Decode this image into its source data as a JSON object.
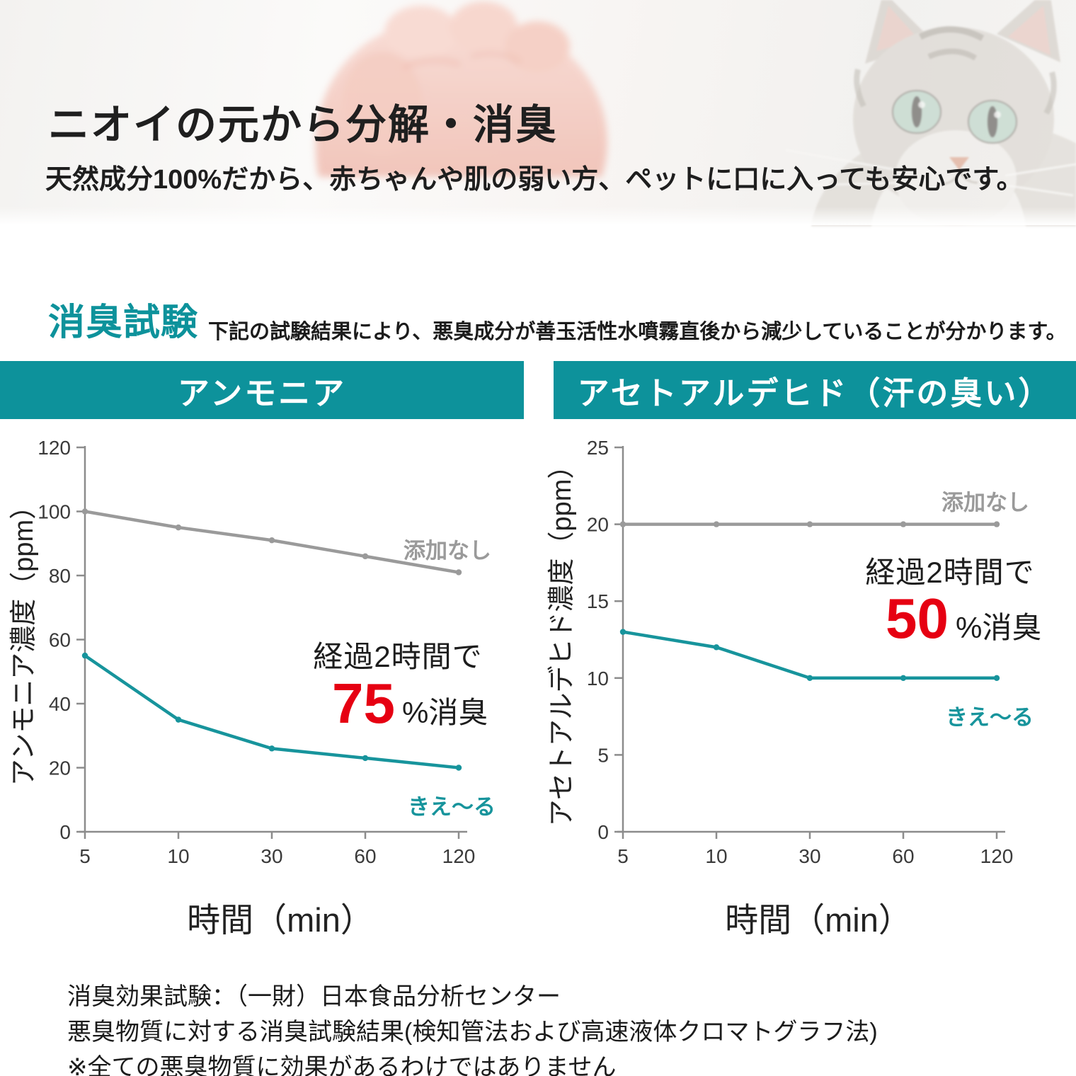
{
  "header": {
    "title": "ニオイの元から分解・消臭",
    "subtitle": "天然成分100%だから、赤ちゃんや肌の弱い方、ペットに口に入っても安心です。"
  },
  "section": {
    "heading": "消臭試験",
    "note": "下記の試験結果により、悪臭成分が善玉活性水噴霧直後から減少していることが分かります。"
  },
  "colors": {
    "teal": "#0d929b",
    "teal_line": "#17949c",
    "gray_line": "#9a9a9a",
    "red": "#e60012",
    "axis": "#8c8c8c",
    "tick_text": "#3a3a3a",
    "annotation_text": "#1d1d1d"
  },
  "chart_data": [
    {
      "type": "line",
      "title": "アンモニア",
      "categories": [
        5,
        10,
        30,
        60,
        120
      ],
      "series": [
        {
          "name": "添加なし",
          "values": [
            100,
            95,
            91,
            86,
            81
          ],
          "color": "#9a9a9a"
        },
        {
          "name": "きえ〜る",
          "values": [
            55,
            35,
            26,
            23,
            20
          ],
          "color": "#17949c"
        }
      ],
      "xlabel": "時間（min）",
      "ylabel": "アンモニア濃度（ppm）",
      "ylim": [
        0,
        120
      ],
      "ytick_step": 20,
      "grid": false,
      "legend_position": "inline-labels",
      "annotation": {
        "line1": "経過2時間で",
        "big": "75",
        "suffix": "%消臭"
      }
    },
    {
      "type": "line",
      "title": "アセトアルデヒド（汗の臭い）",
      "categories": [
        5,
        10,
        30,
        60,
        120
      ],
      "series": [
        {
          "name": "添加なし",
          "values": [
            20,
            20,
            20,
            20,
            20
          ],
          "color": "#9a9a9a"
        },
        {
          "name": "きえ〜る",
          "values": [
            13,
            12,
            10,
            10,
            10
          ],
          "color": "#17949c"
        }
      ],
      "xlabel": "時間（min）",
      "ylabel": "アセトアルデヒド濃度（ppm）",
      "ylim": [
        0,
        25
      ],
      "ytick_step": 5,
      "grid": false,
      "legend_position": "inline-labels",
      "annotation": {
        "line1": "経過2時間で",
        "big": "50",
        "suffix": "%消臭"
      }
    }
  ],
  "footnotes": [
    "消臭効果試験：（一財）日本食品分析センター",
    "悪臭物質に対する消臭試験結果(検知管法および高速液体クロマトグラフ法)",
    "※全ての悪臭物質に効果があるわけではありません"
  ]
}
